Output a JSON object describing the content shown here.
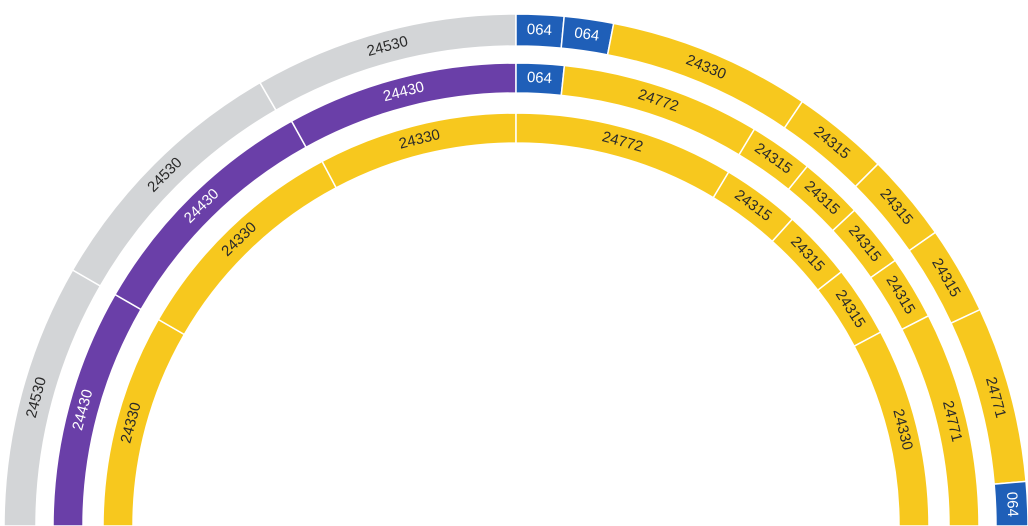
{
  "rings": [
    {
      "segments": [
        {
          "label": "24530",
          "color": "#d3d5d7"
        },
        {
          "label": "24530",
          "color": "#d3d5d7"
        },
        {
          "label": "24530",
          "color": "#d3d5d7"
        },
        {
          "label": "064",
          "color": "#1f5fb8"
        },
        {
          "label": "064",
          "color": "#1f5fb8"
        },
        {
          "label": "24330",
          "color": "#f7c81e"
        },
        {
          "label": "24315",
          "color": "#f7c81e"
        },
        {
          "label": "24315",
          "color": "#f7c81e"
        },
        {
          "label": "24315",
          "color": "#f7c81e"
        },
        {
          "label": "24771",
          "color": "#f7c81e"
        },
        {
          "label": "064",
          "color": "#1f5fb8"
        }
      ]
    },
    {
      "segments": [
        {
          "label": "24430",
          "color": "#6a3fa8"
        },
        {
          "label": "24430",
          "color": "#6a3fa8"
        },
        {
          "label": "24430",
          "color": "#6a3fa8"
        },
        {
          "label": "064",
          "color": "#1f5fb8"
        },
        {
          "label": "24772",
          "color": "#f7c81e"
        },
        {
          "label": "24315",
          "color": "#f7c81e"
        },
        {
          "label": "24315",
          "color": "#f7c81e"
        },
        {
          "label": "24315",
          "color": "#f7c81e"
        },
        {
          "label": "24315",
          "color": "#f7c81e"
        },
        {
          "label": "24771",
          "color": "#f7c81e"
        }
      ]
    },
    {
      "segments": [
        {
          "label": "24330",
          "color": "#f7c81e"
        },
        {
          "label": "24330",
          "color": "#f7c81e"
        },
        {
          "label": "24330",
          "color": "#f7c81e"
        },
        {
          "label": "24772",
          "color": "#f7c81e"
        },
        {
          "label": "24315",
          "color": "#f7c81e"
        },
        {
          "label": "24315",
          "color": "#f7c81e"
        },
        {
          "label": "24315",
          "color": "#f7c81e"
        },
        {
          "label": "24330",
          "color": "#f7c81e"
        }
      ]
    }
  ]
}
